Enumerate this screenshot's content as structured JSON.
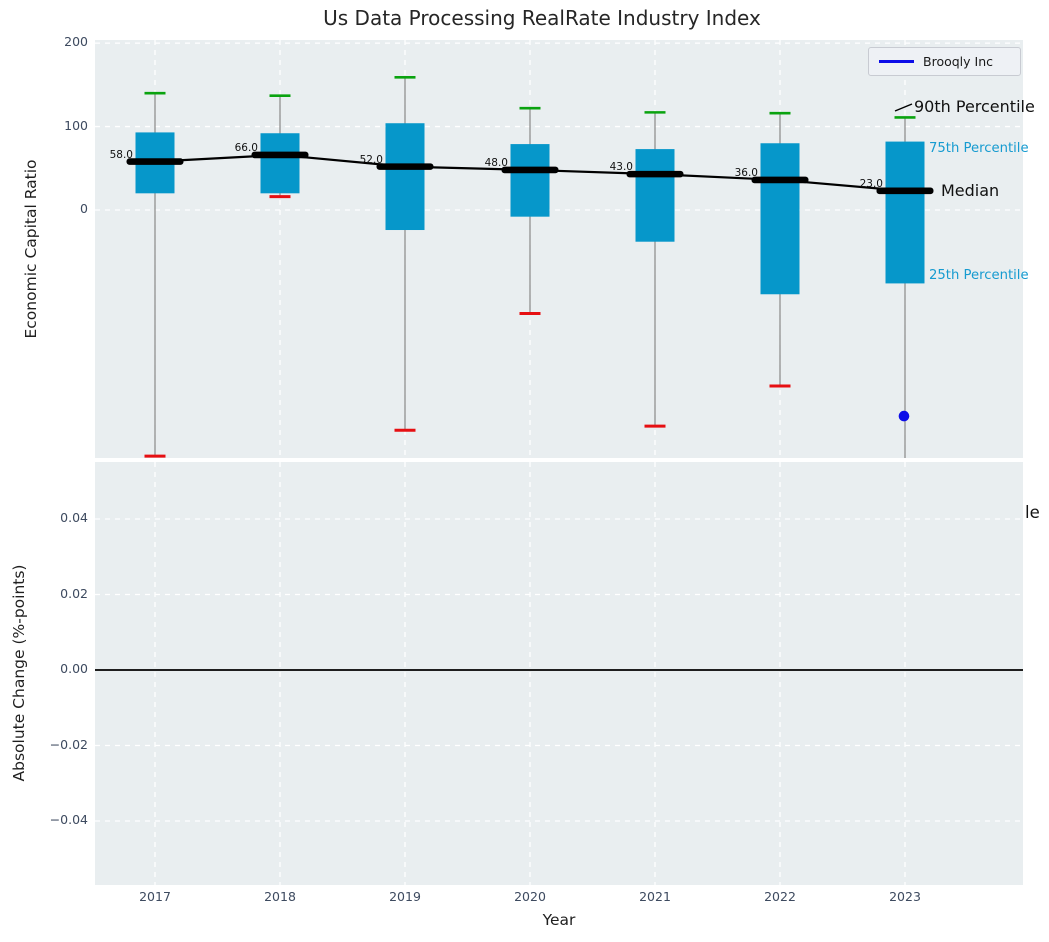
{
  "legend": {
    "label": "Brooqly Inc"
  },
  "annotations": {
    "p90_label": "90th Percentile",
    "p75_label": "75th Percentile",
    "median_label": "Median",
    "p25_label": "25th Percentile",
    "clipped_right_label": "le"
  },
  "colors": {
    "panel_bg": "#e9eef0",
    "box_fill": "#0697ca",
    "p90_cap": "#0aa30f",
    "p10_cap": "#e60f12",
    "whisker": "#8f8f8f",
    "median_line": "#000000",
    "company_blue": "#0d0de8",
    "grid": "#ffffff",
    "tick_text": "#3d4a5f",
    "percentile_text": "#169bd0",
    "zero_line": "#000000"
  },
  "chart_data": {
    "type": "boxplot",
    "title": "Us Data Processing RealRate Industry Index",
    "xlabel": "Year",
    "categories": [
      2017,
      2018,
      2019,
      2020,
      2021,
      2022,
      2023
    ],
    "legend_position": "upper right",
    "top_panel": {
      "ylabel": "Economic Capital Ratio",
      "ylim": [
        -297,
        204
      ],
      "grid": true,
      "yticks": [
        {
          "value": 200,
          "label": "200"
        },
        {
          "value": 100,
          "label": "100"
        },
        {
          "value": 0,
          "label": "0"
        }
      ],
      "boxes": [
        {
          "year": 2017,
          "p10": -295,
          "p25": 20,
          "median": 58.0,
          "p75": 93,
          "p90": 140,
          "median_label": "58.0"
        },
        {
          "year": 2018,
          "p10": 16,
          "p25": 20,
          "median": 66.0,
          "p75": 92,
          "p90": 137,
          "median_label": "66.0"
        },
        {
          "year": 2019,
          "p10": -264,
          "p25": -24,
          "median": 52.0,
          "p75": 104,
          "p90": 159,
          "median_label": "52.0"
        },
        {
          "year": 2020,
          "p10": -124,
          "p25": -8,
          "median": 48.0,
          "p75": 79,
          "p90": 122,
          "median_label": "48.0"
        },
        {
          "year": 2021,
          "p10": -259,
          "p25": -38,
          "median": 43.0,
          "p75": 73,
          "p90": 117,
          "median_label": "43.0"
        },
        {
          "year": 2022,
          "p10": -211,
          "p25": -101,
          "median": 36.0,
          "p75": 80,
          "p90": 116,
          "median_label": "36.0"
        },
        {
          "year": 2023,
          "p10": null,
          "p25": -88,
          "median": 23.0,
          "p75": 82,
          "p90": 111,
          "median_label": "23.0"
        }
      ],
      "company_point": {
        "year": 2023,
        "value": -247
      }
    },
    "bottom_panel": {
      "ylabel": "Absolute Change (%-points)",
      "ylim": [
        -0.057,
        0.055
      ],
      "grid": true,
      "zero_line": 0.0,
      "yticks": [
        {
          "value": 0.04,
          "label": "0.04"
        },
        {
          "value": 0.02,
          "label": "0.02"
        },
        {
          "value": 0.0,
          "label": "0.00"
        },
        {
          "value": -0.02,
          "label": "−0.02"
        },
        {
          "value": -0.04,
          "label": "−0.04"
        }
      ]
    }
  }
}
